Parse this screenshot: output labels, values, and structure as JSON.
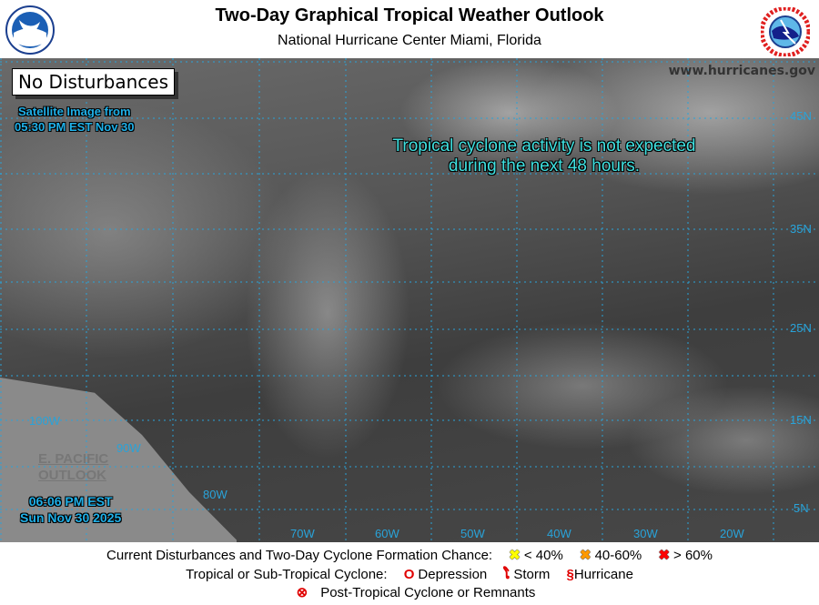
{
  "header": {
    "title": "Two-Day Graphical Tropical Weather Outlook",
    "subtitle": "National Hurricane Center  Miami, Florida",
    "left_logo": "NOAA",
    "right_logo": "NATIONAL WEATHER SERVICE"
  },
  "map": {
    "website": "www.hurricanes.gov",
    "status_box": "No Disturbances",
    "satellite_line1": "Satellite Image from",
    "satellite_line2": "05:30 PM EST Nov 30",
    "message_line1": "Tropical cyclone activity is not expected",
    "message_line2": "during the next 48 hours.",
    "epac_line1": "E. PACIFIC",
    "epac_line2": "OUTLOOK",
    "time_line1": "06:06 PM EST",
    "time_line2": "Sun Nov 30 2025",
    "lat_labels": [
      "45N",
      "35N",
      "25N",
      "15N",
      "5N"
    ],
    "lon_labels": [
      "100W",
      "90W",
      "80W",
      "70W",
      "60W",
      "50W",
      "40W",
      "30W",
      "20W"
    ]
  },
  "legend": {
    "row1_label": "Current Disturbances and Two-Day Cyclone Formation Chance:",
    "low": "< 40%",
    "medium": "40-60%",
    "high": "> 60%",
    "row2_label": "Tropical or Sub-Tropical Cyclone:",
    "depression": "Depression",
    "storm": "Storm",
    "hurricane": "Hurricane",
    "post_tropical": "Post-Tropical Cyclone or Remnants",
    "colors": {
      "low": "#ffff00",
      "medium": "#ff9900",
      "high": "#ff0000",
      "cyclone": "#e00000",
      "grid": "#29a3d9"
    }
  }
}
